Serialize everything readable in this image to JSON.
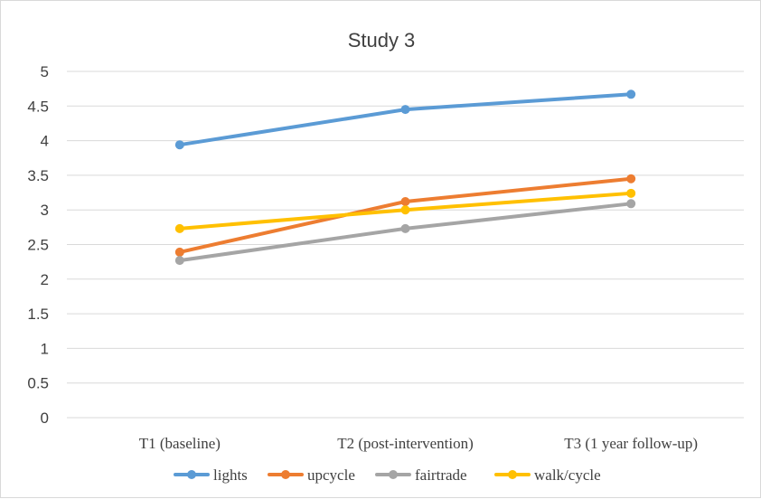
{
  "chart_data": {
    "type": "line",
    "title": "Study 3",
    "xlabel": "",
    "ylabel": "",
    "categories": [
      "T1 (baseline)",
      "T2 (post-intervention)",
      "T3 (1 year follow-up)"
    ],
    "ylim": [
      0,
      5
    ],
    "yticks": [
      "0",
      "0.5",
      "1",
      "1.5",
      "2",
      "2.5",
      "3",
      "3.5",
      "4",
      "4.5",
      "5"
    ],
    "grid": true,
    "legend_position": "bottom",
    "series": [
      {
        "name": "lights",
        "values": [
          3.94,
          4.45,
          4.67
        ],
        "color": "#5b9bd5"
      },
      {
        "name": "upcycle",
        "values": [
          2.39,
          3.12,
          3.45
        ],
        "color": "#ed7d31"
      },
      {
        "name": "fairtrade",
        "values": [
          2.27,
          2.73,
          3.09
        ],
        "color": "#a5a5a5"
      },
      {
        "name": "walk/cycle",
        "values": [
          2.73,
          3.0,
          3.24
        ],
        "color": "#ffc000"
      }
    ]
  }
}
